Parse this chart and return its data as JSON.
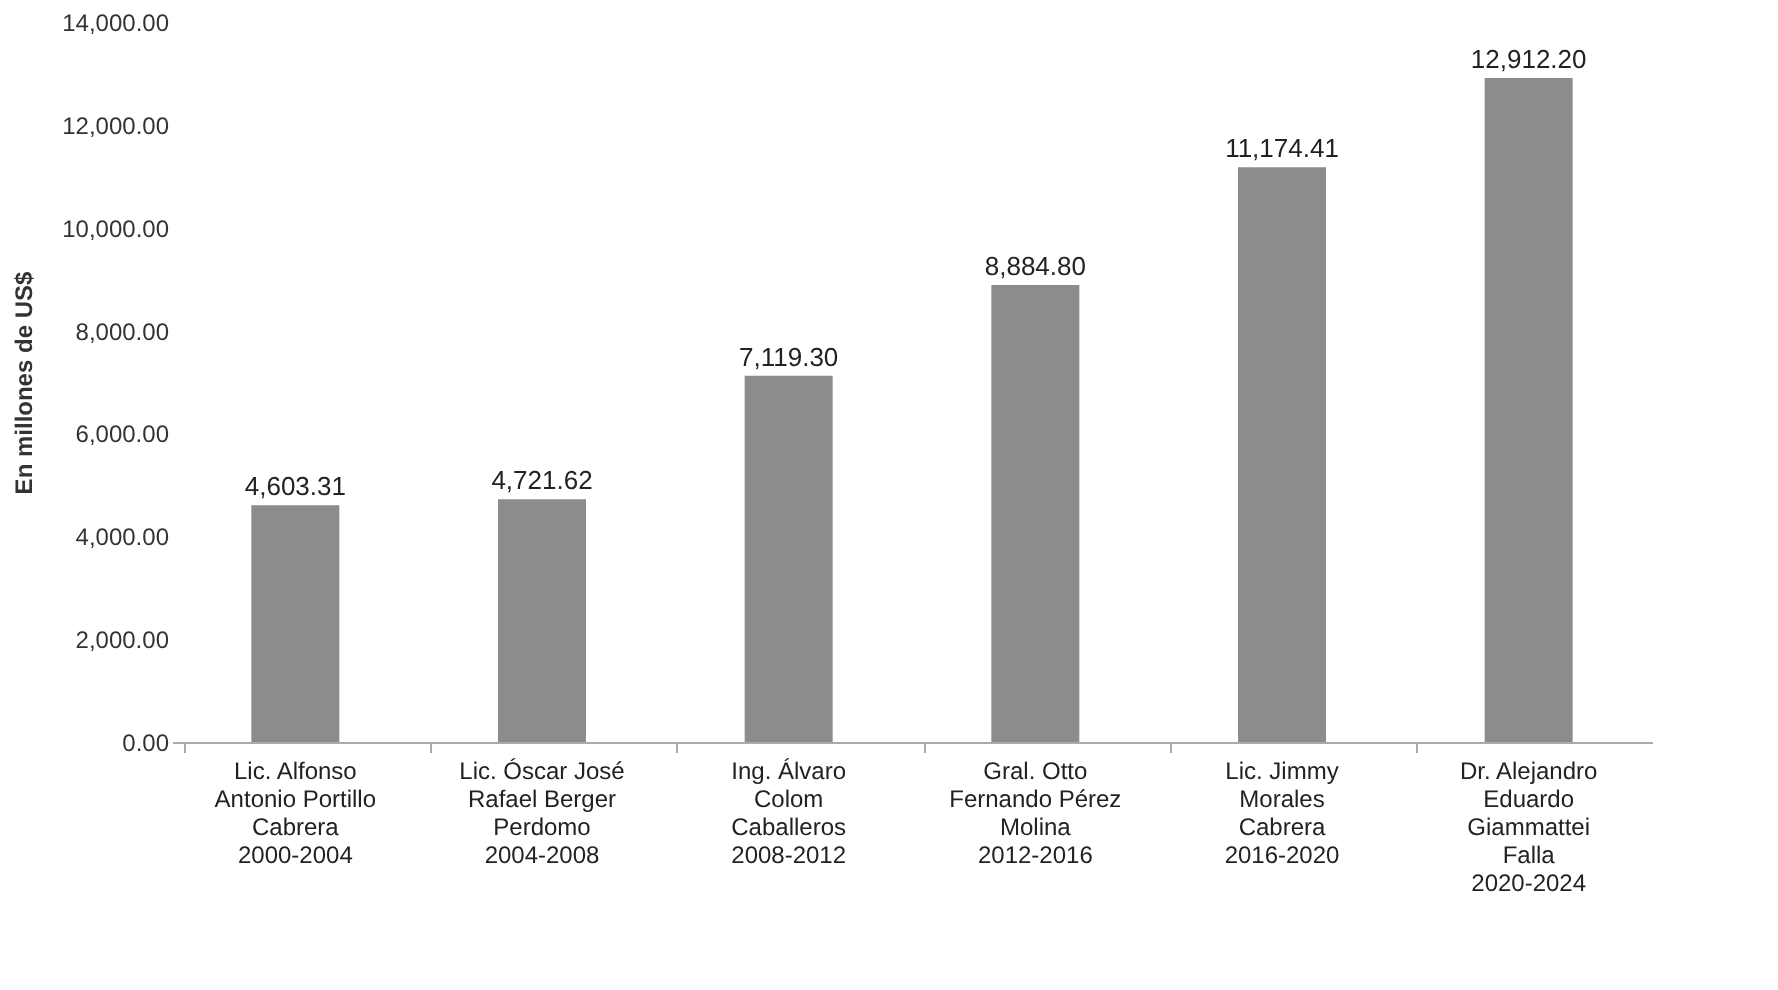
{
  "chart_data": {
    "type": "bar",
    "ylabel": "En millones de US$",
    "categories": [
      "Lic.  Alfonso\nAntonio Portillo\nCabrera\n2000-2004",
      "Lic. Óscar José\nRafael Berger\nPerdomo\n2004-2008",
      "Ing. Álvaro\nColom\nCaballeros\n2008-2012",
      "Gral. Otto\nFernando Pérez\nMolina\n2012-2016",
      "Lic. Jimmy\nMorales\nCabrera\n2016-2020",
      "Dr. Alejandro\nEduardo\nGiammattei\nFalla\n2020-2024"
    ],
    "values": [
      4603.31,
      4721.62,
      7119.3,
      8884.8,
      11174.41,
      12912.2
    ],
    "color": "#8c8c8c",
    "value_labels": [
      "4,603.31",
      "4,721.62",
      "7,119.30",
      "8,884.80",
      "11,174.41",
      "12,912.20"
    ],
    "ylim": [
      0,
      14000
    ],
    "yticks": [
      {
        "value": 0,
        "label": "0.00"
      },
      {
        "value": 2000,
        "label": "2,000.00"
      },
      {
        "value": 4000,
        "label": "4,000.00"
      },
      {
        "value": 6000,
        "label": "6,000.00"
      },
      {
        "value": 8000,
        "label": "8,000.00"
      },
      {
        "value": 10000,
        "label": "10,000.00"
      },
      {
        "value": 12000,
        "label": "12,000.00"
      },
      {
        "value": 14000,
        "label": "14,000.00"
      }
    ],
    "grid": false
  }
}
